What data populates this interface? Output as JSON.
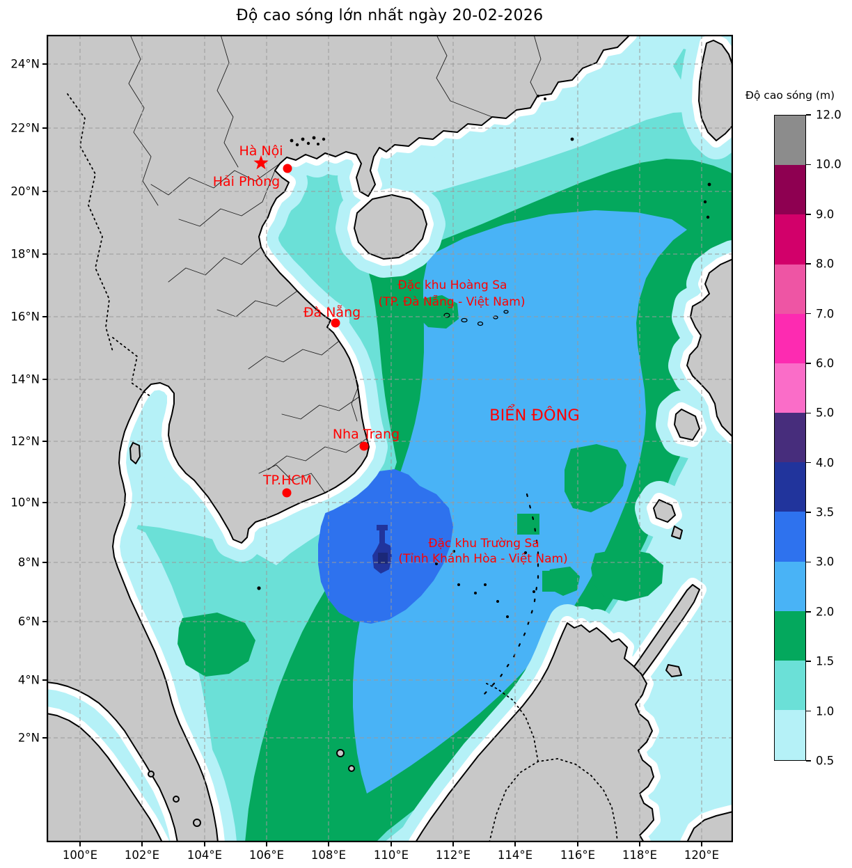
{
  "title": "Độ cao sóng lớn nhất ngày 20-02-2026",
  "axes": {
    "x_ticks": [
      "100°E",
      "102°E",
      "104°E",
      "106°E",
      "108°E",
      "110°E",
      "112°E",
      "114°E",
      "116°E",
      "118°E",
      "120°E"
    ],
    "y_ticks": [
      "24°N",
      "22°N",
      "20°N",
      "18°N",
      "16°N",
      "14°N",
      "12°N",
      "10°N",
      "8°N",
      "6°N",
      "4°N",
      "2°N"
    ]
  },
  "colorbar": {
    "title": "Độ cao sóng (m)",
    "boundary_labels_top_to_bottom": [
      "12.0",
      "10.0",
      "9.0",
      "8.0",
      "7.0",
      "6.0",
      "5.0",
      "4.0",
      "3.5",
      "3.0",
      "2.0",
      "1.5",
      "1.0",
      "0.5"
    ],
    "cells_top_to_bottom": [
      {
        "range": "10.0–12.0",
        "color": "#8c8c8c"
      },
      {
        "range": "9.0–10.0",
        "color": "#8e0051"
      },
      {
        "range": "8.0–9.0",
        "color": "#d2006a"
      },
      {
        "range": "7.0–8.0",
        "color": "#ee55a4"
      },
      {
        "range": "6.0–7.0",
        "color": "#fd2bb1"
      },
      {
        "range": "5.0–6.0",
        "color": "#fa6dc8"
      },
      {
        "range": "4.0–5.0",
        "color": "#472d7c"
      },
      {
        "range": "3.5–4.0",
        "color": "#21349c"
      },
      {
        "range": "3.0–3.5",
        "color": "#2e72ee"
      },
      {
        "range": "2.0–3.0",
        "color": "#49b3f6"
      },
      {
        "range": "1.5–2.0",
        "color": "#04a85d"
      },
      {
        "range": "1.0–1.5",
        "color": "#6be0d7"
      },
      {
        "range": "0.5–1.0",
        "color": "#b5f1f7"
      }
    ]
  },
  "cities": [
    {
      "name": "Hà Nội",
      "marker": "star"
    },
    {
      "name": "Hải Phòng",
      "marker": "dot"
    },
    {
      "name": "Đà Nẵng",
      "marker": "dot"
    },
    {
      "name": "Nha Trang",
      "marker": "dot"
    },
    {
      "name": "TP.HCM",
      "marker": "dot"
    }
  ],
  "sea_labels": {
    "biendong": "BIỂN ĐÔNG",
    "hoangsa_line1": "Đặc khu Hoàng Sa",
    "hoangsa_line2": "(TP. Đà Nẵng - Việt Nam)",
    "truongsa_line1": "Đặc khu Trường Sa",
    "truongsa_line2": "(Tỉnh Khánh Hòa - Việt Nam)"
  },
  "palette": {
    "land": "#c8c8c8",
    "coastline": "#000000",
    "marker_red": "#ff0000",
    "wave_lt_0_5": "#ffffff",
    "wave_0_5_1": "#b5f1f7",
    "wave_1_1_5": "#6be0d7",
    "wave_1_5_2": "#04a85d",
    "wave_2_3": "#49b3f6",
    "wave_3_3_5": "#2e72ee",
    "wave_3_5_4": "#21349c"
  }
}
